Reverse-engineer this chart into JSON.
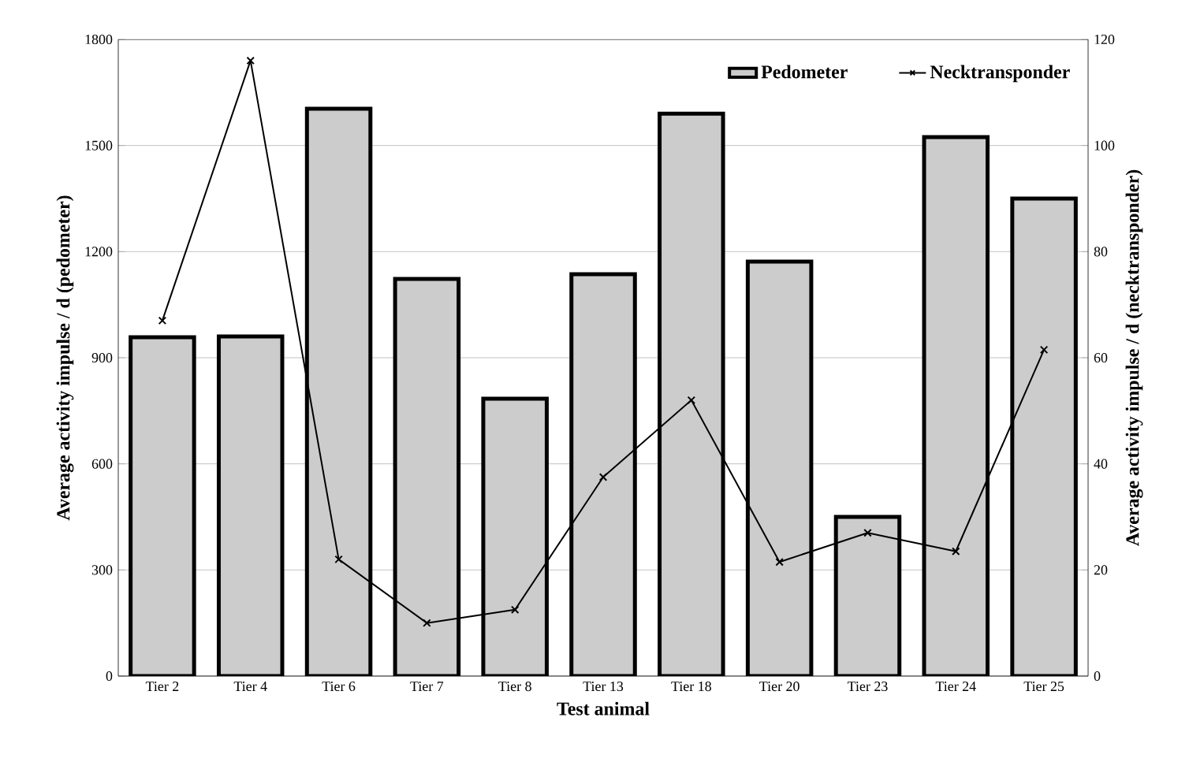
{
  "chart_data": {
    "type": "bar",
    "categories": [
      "Tier 2",
      "Tier 4",
      "Tier 6",
      "Tier 7",
      "Tier 8",
      "Tier 13",
      "Tier 18",
      "Tier 20",
      "Tier 23",
      "Tier 24",
      "Tier 25"
    ],
    "series": [
      {
        "name": "Pedometer",
        "color": "#cccccc",
        "values": [
          958,
          960,
          1604,
          1123,
          784,
          1136,
          1590,
          1172,
          450,
          1524,
          1350
        ]
      },
      {
        "name": "Necktransponder",
        "type": "line",
        "axis": "y2",
        "color": "#000000",
        "marker": "cross",
        "values": [
          67,
          116,
          22,
          10,
          12.5,
          37.5,
          52,
          21.5,
          27,
          23.5,
          61.5
        ]
      }
    ],
    "xlabel": "Test animal",
    "ylabel": "Average activity impulse / d (pedometer)",
    "y2label": "Average activity impulse  / d (necktransponder)",
    "ylim": [
      0,
      1800
    ],
    "yticks": [
      0,
      300,
      600,
      900,
      1200,
      1500,
      1800
    ],
    "y2lim": [
      0,
      120
    ],
    "y2ticks": [
      0,
      20,
      40,
      60,
      80,
      100,
      120
    ],
    "grid": "y",
    "legend": "top right"
  }
}
